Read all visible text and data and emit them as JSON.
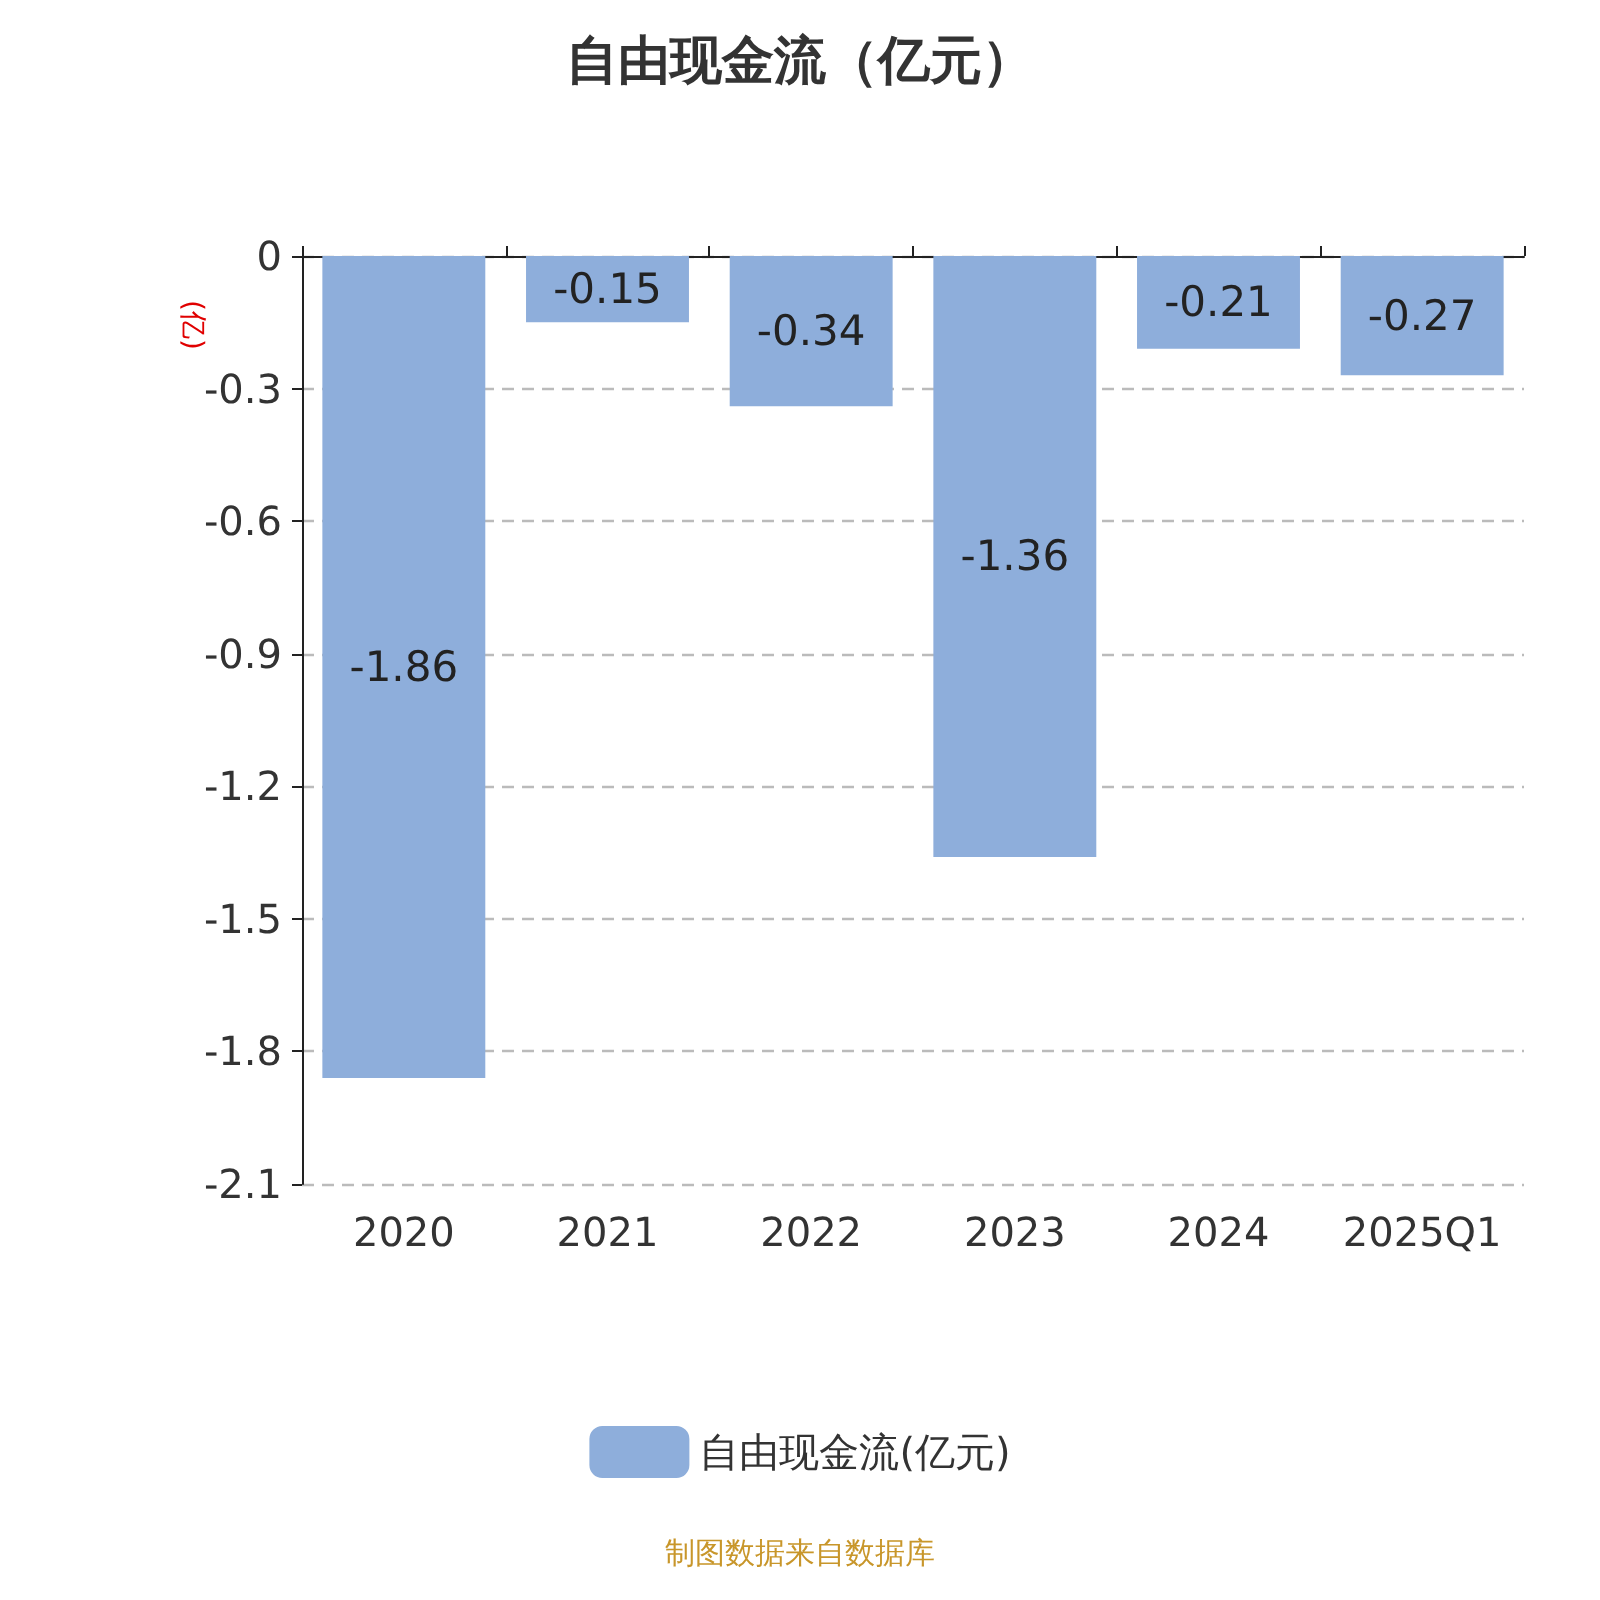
{
  "chart_data": {
    "type": "bar",
    "title": "自由现金流（亿元）",
    "ylabel": "(亿)",
    "categories": [
      "2020",
      "2021",
      "2022",
      "2023",
      "2024",
      "2025Q1"
    ],
    "series": [
      {
        "name": "自由现金流(亿元)",
        "color": "#8eaedb",
        "values": [
          -1.86,
          -0.15,
          -0.34,
          -1.36,
          -0.21,
          -0.27
        ]
      }
    ],
    "data_labels": true,
    "ylim": [
      -2.1,
      0
    ],
    "yticks": [
      0,
      -0.3,
      -0.6,
      -0.9,
      -1.2,
      -1.5,
      -1.8,
      -2.1
    ],
    "grid": "y",
    "legend": "bottom",
    "annotations": [
      "制图数据来自数据库"
    ]
  }
}
